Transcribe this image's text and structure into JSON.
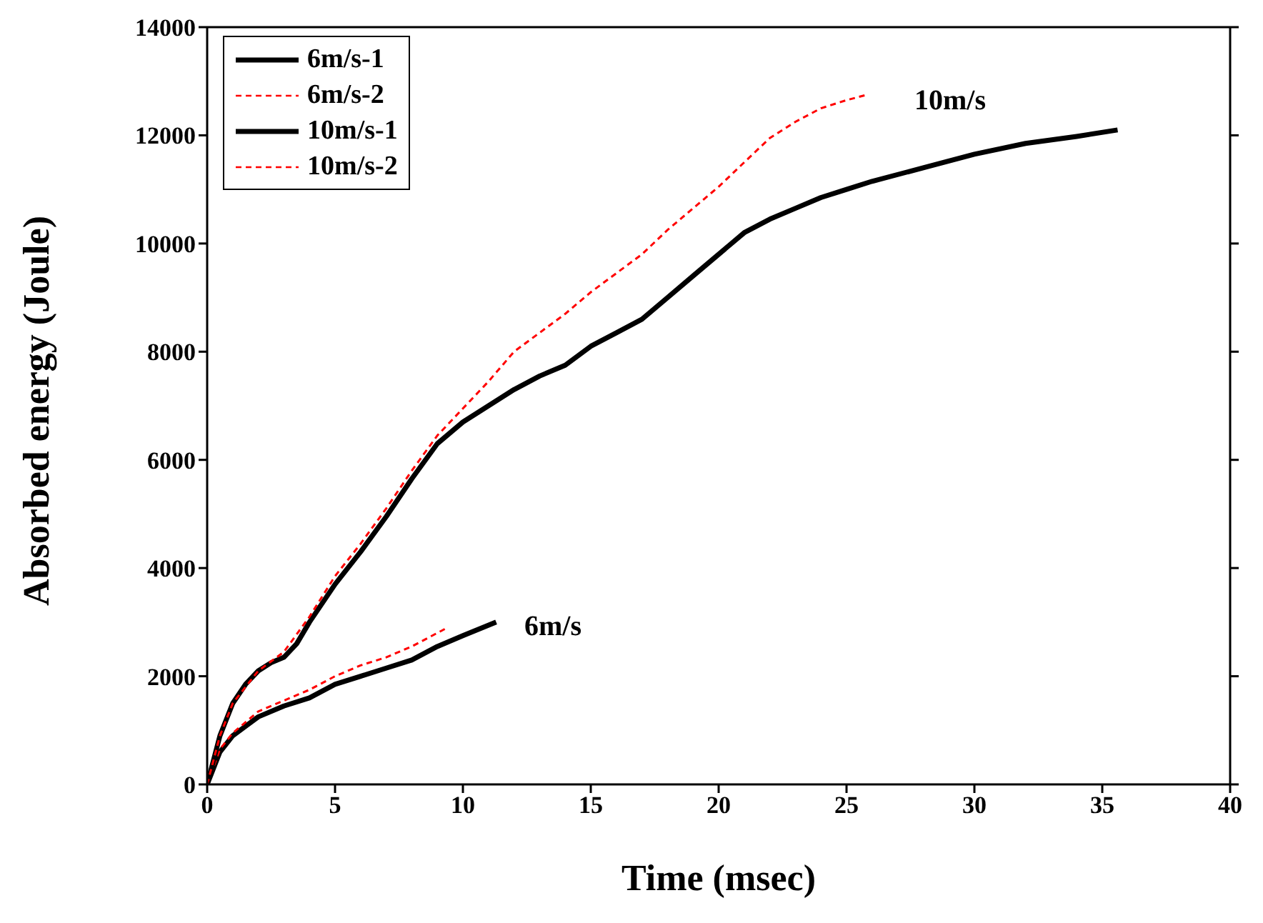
{
  "chart_data": {
    "type": "line",
    "xlabel": "Time (msec)",
    "ylabel": "Absorbed energy (Joule)",
    "xlim": [
      0,
      40
    ],
    "xticks": [
      0,
      5,
      10,
      15,
      20,
      25,
      30,
      35,
      40
    ],
    "ylim": [
      0,
      14000
    ],
    "yticks": [
      0,
      2000,
      4000,
      6000,
      8000,
      10000,
      12000,
      14000
    ],
    "grid": false,
    "legend": "top left",
    "marker": "none",
    "series": [
      {
        "name": "6m/s-1",
        "color": "#000000",
        "line_style": "solid",
        "x": [
          0,
          0.5,
          1,
          2,
          3,
          4,
          5,
          6,
          7,
          8,
          9,
          10,
          11.3
        ],
        "values": [
          0,
          600,
          900,
          1250,
          1450,
          1600,
          1850,
          2000,
          2150,
          2300,
          2550,
          2750,
          3000
        ]
      },
      {
        "name": "6m/s-2",
        "color": "#ff0000",
        "line_style": "dashed",
        "x": [
          0,
          0.5,
          1,
          2,
          3,
          4,
          5,
          6,
          7,
          8,
          9,
          9.4
        ],
        "values": [
          0,
          650,
          950,
          1350,
          1550,
          1750,
          2000,
          2200,
          2350,
          2550,
          2800,
          2900
        ]
      },
      {
        "name": "10m/s-1",
        "color": "#000000",
        "line_style": "solid",
        "x": [
          0,
          0.5,
          1,
          1.5,
          2,
          2.5,
          3,
          3.5,
          4,
          5,
          6,
          7,
          8,
          9,
          10,
          11,
          12,
          13,
          14,
          15,
          16,
          17,
          18,
          19,
          20,
          21,
          22,
          23,
          24,
          25,
          26,
          28,
          30,
          32,
          34,
          35.6
        ],
        "values": [
          0,
          900,
          1500,
          1850,
          2100,
          2250,
          2350,
          2600,
          3000,
          3700,
          4300,
          4950,
          5650,
          6300,
          6700,
          7000,
          7300,
          7550,
          7750,
          8100,
          8350,
          8600,
          9000,
          9400,
          9800,
          10200,
          10450,
          10650,
          10850,
          11000,
          11150,
          11400,
          11650,
          11850,
          11980,
          12100
        ]
      },
      {
        "name": "10m/s-2",
        "color": "#ff0000",
        "line_style": "dashed",
        "x": [
          0,
          0.5,
          1,
          2,
          3,
          4,
          5,
          6,
          7,
          8,
          9,
          10,
          11,
          12,
          13,
          14,
          15,
          16,
          17,
          18,
          19,
          20,
          21,
          22,
          23,
          24,
          25,
          25.8
        ],
        "values": [
          0,
          900,
          1500,
          2100,
          2450,
          3100,
          3850,
          4450,
          5100,
          5800,
          6450,
          6950,
          7450,
          8000,
          8350,
          8700,
          9100,
          9450,
          9800,
          10250,
          10650,
          11050,
          11500,
          11950,
          12250,
          12500,
          12650,
          12750
        ]
      }
    ],
    "annotations": [
      "10m/s",
      "6m/s"
    ]
  }
}
